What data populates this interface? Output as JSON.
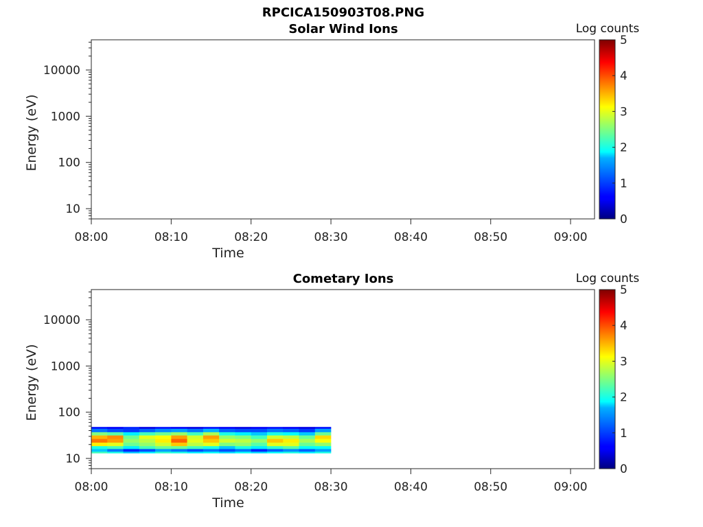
{
  "figure": {
    "title": "RPCICA150903T08.PNG"
  },
  "chart_data": [
    {
      "type": "heatmap",
      "title": "Solar Wind Ions",
      "xlabel": "Time",
      "ylabel": "Energy (eV)",
      "x_ticks": [
        "08:00",
        "08:10",
        "08:20",
        "08:30",
        "08:40",
        "08:50",
        "09:00"
      ],
      "y_ticks": [
        "10",
        "100",
        "1000",
        "10000"
      ],
      "ylim": [
        6,
        45000
      ],
      "y_scale": "log",
      "xlim": [
        "08:00",
        "09:03"
      ],
      "colorbar": {
        "label": "Log counts",
        "ticks": [
          "0",
          "1",
          "2",
          "3",
          "4",
          "5"
        ],
        "range": [
          0,
          5
        ],
        "colormap": "jet"
      },
      "data": []
    },
    {
      "type": "heatmap",
      "title": "Cometary Ions",
      "xlabel": "Time",
      "ylabel": "Energy (eV)",
      "x_ticks": [
        "08:00",
        "08:10",
        "08:20",
        "08:30",
        "08:40",
        "08:50",
        "09:00"
      ],
      "y_ticks": [
        "10",
        "100",
        "1000",
        "10000"
      ],
      "ylim": [
        6,
        45000
      ],
      "y_scale": "log",
      "xlim": [
        "08:00",
        "09:03"
      ],
      "colorbar": {
        "label": "Log counts",
        "ticks": [
          "0",
          "1",
          "2",
          "3",
          "4",
          "5"
        ],
        "range": [
          0,
          5
        ],
        "colormap": "jet"
      },
      "data_extent": {
        "time": [
          "08:00",
          "08:30"
        ],
        "energy_eV": [
          13,
          48
        ]
      },
      "energy_bins_eV": [
        48,
        40,
        34,
        29,
        24,
        20,
        17,
        15,
        13
      ],
      "data": [
        {
          "time": "08:00",
          "log_counts": [
            0.7,
            1.2,
            2.5,
            3.5,
            3.8,
            3.2,
            2.0,
            1.6,
            2.2
          ]
        },
        {
          "time": "08:02",
          "log_counts": [
            0.6,
            1.0,
            2.3,
            3.7,
            3.6,
            3.0,
            2.2,
            1.2,
            2.0
          ]
        },
        {
          "time": "08:04",
          "log_counts": [
            0.8,
            0.9,
            1.8,
            2.4,
            2.6,
            2.4,
            1.8,
            0.8,
            1.6
          ]
        },
        {
          "time": "08:06",
          "log_counts": [
            0.5,
            1.1,
            2.2,
            3.0,
            2.8,
            2.6,
            2.2,
            1.0,
            1.8
          ]
        },
        {
          "time": "08:08",
          "log_counts": [
            0.7,
            1.3,
            2.4,
            3.1,
            3.2,
            2.9,
            2.4,
            1.4,
            2.1
          ]
        },
        {
          "time": "08:10",
          "log_counts": [
            0.6,
            1.4,
            2.6,
            3.6,
            3.9,
            3.4,
            2.4,
            1.2,
            2.0
          ]
        },
        {
          "time": "08:12",
          "log_counts": [
            0.5,
            1.2,
            2.2,
            2.9,
            3.0,
            2.8,
            2.2,
            1.0,
            1.8
          ]
        },
        {
          "time": "08:14",
          "log_counts": [
            0.7,
            1.5,
            2.7,
            3.6,
            3.4,
            3.0,
            2.0,
            1.2,
            1.9
          ]
        },
        {
          "time": "08:16",
          "log_counts": [
            0.6,
            1.1,
            2.0,
            2.6,
            2.9,
            2.5,
            1.6,
            1.0,
            1.7
          ]
        },
        {
          "time": "08:18",
          "log_counts": [
            0.5,
            1.0,
            1.8,
            2.5,
            2.8,
            2.6,
            2.0,
            1.2,
            1.9
          ]
        },
        {
          "time": "08:20",
          "log_counts": [
            0.6,
            1.0,
            1.6,
            2.2,
            2.6,
            2.3,
            1.8,
            0.8,
            1.7
          ]
        },
        {
          "time": "08:22",
          "log_counts": [
            0.7,
            1.2,
            2.0,
            2.9,
            3.4,
            3.0,
            2.1,
            1.1,
            1.9
          ]
        },
        {
          "time": "08:24",
          "log_counts": [
            0.6,
            1.1,
            1.9,
            2.8,
            3.2,
            3.0,
            2.3,
            1.3,
            2.0
          ]
        },
        {
          "time": "08:26",
          "log_counts": [
            0.5,
            0.9,
            1.6,
            2.4,
            2.7,
            2.4,
            1.9,
            1.1,
            1.8
          ]
        },
        {
          "time": "08:28",
          "log_counts": [
            0.7,
            1.4,
            2.4,
            3.3,
            3.1,
            2.6,
            1.9,
            1.4,
            2.0
          ]
        }
      ]
    }
  ]
}
